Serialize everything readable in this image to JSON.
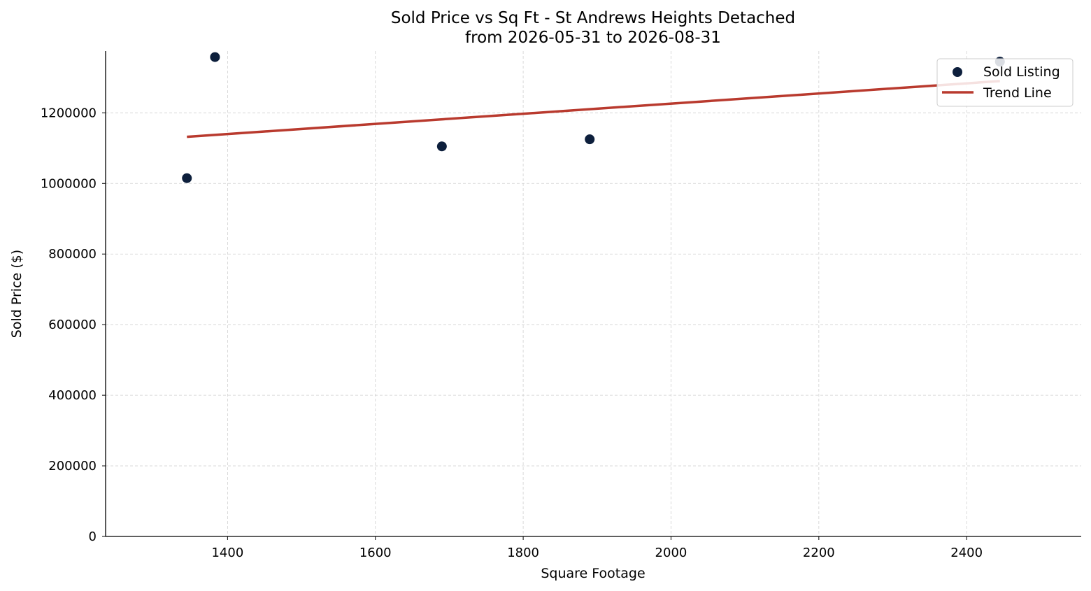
{
  "chart_data": {
    "type": "scatter",
    "title": "Sold Price vs Sq Ft - St Andrews Heights Detached",
    "subtitle": "from 2026-05-31 to 2026-08-31",
    "xlabel": "Square Footage",
    "ylabel": "Sold Price ($)",
    "xlim": [
      1235,
      2555
    ],
    "ylim": [
      0,
      1375000
    ],
    "xticks": [
      1400,
      1600,
      1800,
      2000,
      2200,
      2400
    ],
    "yticks": [
      0,
      200000,
      400000,
      600000,
      800000,
      1000000,
      1200000
    ],
    "grid": true,
    "legend_position": "top-right",
    "series": [
      {
        "name": "Sold Listing",
        "type": "scatter",
        "color": "#0d1f3c",
        "points": [
          {
            "x": 1345,
            "y": 1015000
          },
          {
            "x": 1383,
            "y": 1358000
          },
          {
            "x": 1690,
            "y": 1105000
          },
          {
            "x": 1890,
            "y": 1125000
          },
          {
            "x": 2445,
            "y": 1345000
          }
        ]
      },
      {
        "name": "Trend Line",
        "type": "line",
        "color": "#b93a2e",
        "points": [
          {
            "x": 1345,
            "y": 1132000
          },
          {
            "x": 2445,
            "y": 1290000
          }
        ]
      }
    ]
  }
}
